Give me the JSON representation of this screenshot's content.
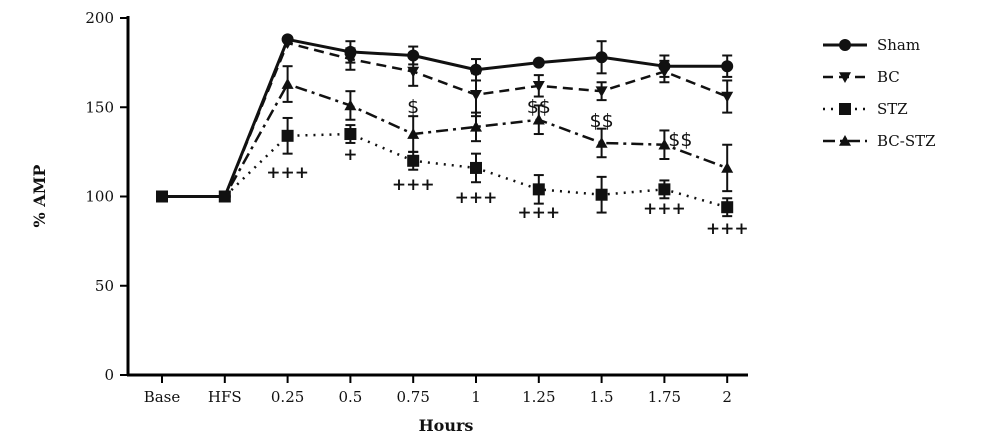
{
  "chart_data": {
    "type": "line",
    "title": "",
    "xlabel": "Hours",
    "ylabel": "% AMP",
    "ylim": [
      0,
      200
    ],
    "yticks": [
      0,
      50,
      100,
      150,
      200
    ],
    "categories": [
      "Base",
      "HFS",
      "0.25",
      "0.5",
      "0.75",
      "1",
      "1.25",
      "1.5",
      "1.75",
      "2"
    ],
    "grid": false,
    "legend_position": "right",
    "series": [
      {
        "name": "Sham",
        "line": "solid",
        "marker": "circle",
        "values": [
          100,
          100,
          188,
          181,
          179,
          171,
          175,
          178,
          173,
          173
        ],
        "errors": [
          0,
          0,
          0,
          6,
          5,
          6,
          0,
          9,
          6,
          6
        ]
      },
      {
        "name": "BC",
        "line": "dashed",
        "marker": "triangle-down",
        "values": [
          100,
          100,
          186,
          177,
          170,
          157,
          162,
          159,
          170,
          156
        ],
        "errors": [
          0,
          0,
          0,
          6,
          8,
          12,
          6,
          5,
          6,
          9
        ]
      },
      {
        "name": "STZ",
        "line": "dotted",
        "marker": "square",
        "values": [
          100,
          100,
          134,
          135,
          120,
          116,
          104,
          101,
          104,
          94
        ],
        "errors": [
          0,
          0,
          10,
          5,
          5,
          8,
          8,
          10,
          5,
          5
        ]
      },
      {
        "name": "BC-STZ",
        "line": "dash-dot",
        "marker": "triangle-up",
        "values": [
          100,
          100,
          163,
          151,
          135,
          139,
          143,
          130,
          129,
          116
        ],
        "errors": [
          0,
          0,
          10,
          8,
          10,
          8,
          8,
          8,
          8,
          13
        ]
      }
    ],
    "annotations": [
      {
        "text": "+++",
        "x": "0.25"
      },
      {
        "text": "+",
        "x": "0.5"
      },
      {
        "text": "+++",
        "x": "0.75"
      },
      {
        "text": "+++",
        "x": "1"
      },
      {
        "text": "+++",
        "x": "1.25"
      },
      {
        "text": "+++",
        "x": "1.75"
      },
      {
        "text": "+++",
        "x": "2"
      },
      {
        "text": "$",
        "x": "0.75"
      },
      {
        "text": "$$",
        "x": "1.25"
      },
      {
        "text": "$$",
        "x": "1.5"
      },
      {
        "text": "$$",
        "x": "1.75"
      }
    ]
  }
}
